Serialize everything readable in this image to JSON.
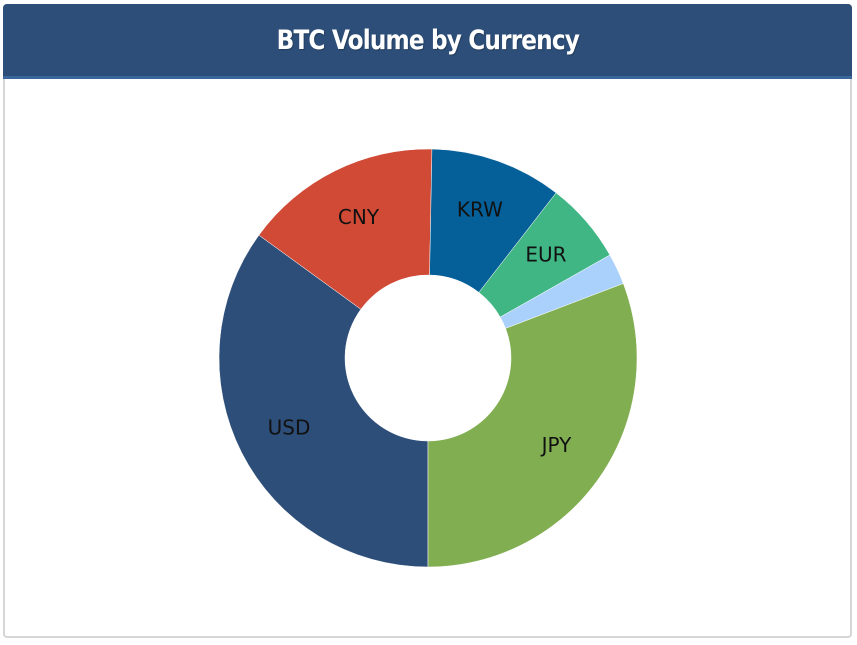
{
  "panel": {
    "title": "BTC Volume by Currency"
  },
  "chart_data": {
    "type": "pie",
    "title": "BTC Volume by Currency",
    "donut": true,
    "slices": [
      {
        "label": "USD",
        "value": 35.0,
        "color": "#2d4e78",
        "show_label": true
      },
      {
        "label": "CNY",
        "value": 15.3,
        "color": "#d04a36",
        "show_label": true
      },
      {
        "label": "KRW",
        "value": 10.2,
        "color": "#055f98",
        "show_label": true
      },
      {
        "label": "EUR",
        "value": 6.3,
        "color": "#41b685",
        "show_label": true
      },
      {
        "label": "",
        "value": 2.4,
        "color": "#a9d1fb",
        "show_label": false
      },
      {
        "label": "JPY",
        "value": 30.8,
        "color": "#82ae52",
        "show_label": true
      }
    ]
  }
}
